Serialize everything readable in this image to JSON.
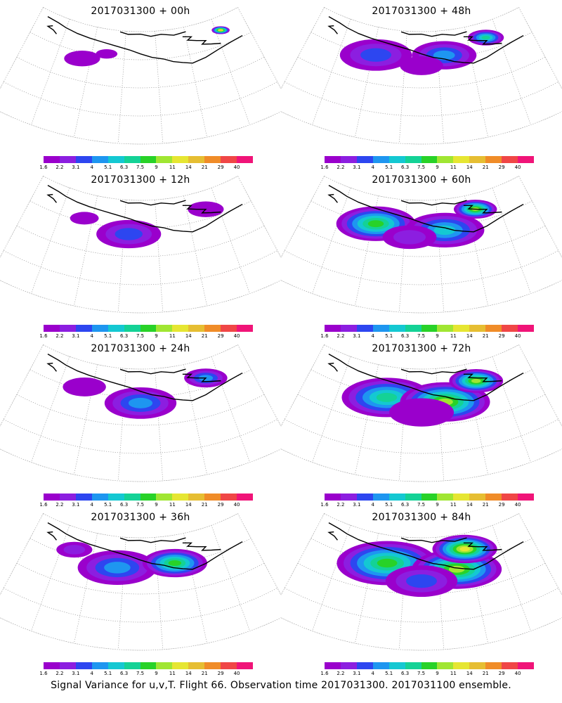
{
  "panels": [
    {
      "title": "2017031300 + 00h",
      "field_level": 0
    },
    {
      "title": "2017031300 + 48h",
      "field_level": 4
    },
    {
      "title": "2017031300 + 12h",
      "field_level": 1
    },
    {
      "title": "2017031300 + 60h",
      "field_level": 5
    },
    {
      "title": "2017031300 + 24h",
      "field_level": 2
    },
    {
      "title": "2017031300 + 72h",
      "field_level": 6
    },
    {
      "title": "2017031300 + 36h",
      "field_level": 3
    },
    {
      "title": "2017031300 + 84h",
      "field_level": 7
    }
  ],
  "colorbar": {
    "labels": [
      "1.6",
      "2.2",
      "3.1",
      "4",
      "5.1",
      "6.3",
      "7.5",
      "9",
      "11",
      "14",
      "21",
      "29",
      "40"
    ],
    "colors": [
      "#9a00cc",
      "#8c1ee0",
      "#2d46f0",
      "#1e96f0",
      "#14c8d2",
      "#14d296",
      "#28d228",
      "#a0e632",
      "#e6e632",
      "#e6be32",
      "#f08c28",
      "#f04646",
      "#f01478"
    ]
  },
  "footer": "Signal Variance for u,v,T. Flight 66. Observation time 2017031300. 2017031100 ensemble."
}
